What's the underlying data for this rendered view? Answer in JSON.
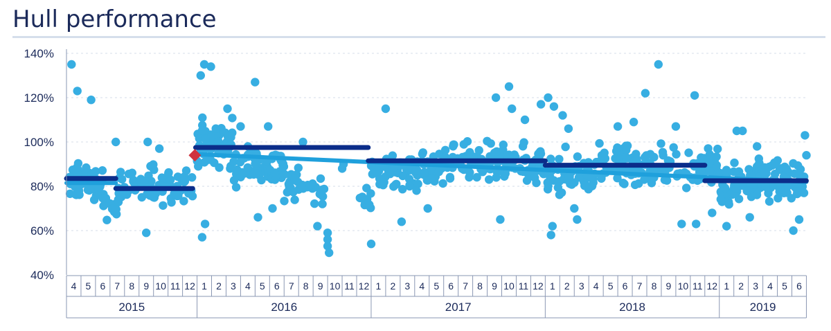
{
  "title": "Hull performance",
  "colors": {
    "points": "#37aee2",
    "trend": "#1fa0dc",
    "period_avg": "#0b2d8a",
    "marker": "#d0333e",
    "title": "#1b2a5a",
    "grid": "#d6dde8"
  },
  "chart_data": {
    "type": "scatter",
    "title": "Hull performance",
    "xlabel": "",
    "ylabel": "",
    "ylim": [
      40,
      140
    ],
    "yticks": [
      "40%",
      "60%",
      "80%",
      "100%",
      "120%",
      "140%"
    ],
    "grid": "horizontal dashed",
    "x_months": [
      "4",
      "5",
      "6",
      "7",
      "8",
      "9",
      "10",
      "11",
      "12",
      "1",
      "2",
      "3",
      "4",
      "5",
      "6",
      "7",
      "8",
      "9",
      "10",
      "11",
      "12",
      "1",
      "2",
      "3",
      "4",
      "5",
      "6",
      "7",
      "8",
      "9",
      "10",
      "11",
      "12",
      "1",
      "2",
      "3",
      "4",
      "5",
      "6",
      "7",
      "8",
      "9",
      "10",
      "11",
      "12",
      "1",
      "2",
      "3",
      "4",
      "5",
      "6"
    ],
    "x_years": [
      {
        "label": "2015",
        "start": 0,
        "end": 9
      },
      {
        "label": "2016",
        "start": 9,
        "end": 21
      },
      {
        "label": "2017",
        "start": 21,
        "end": 33
      },
      {
        "label": "2018",
        "start": 33,
        "end": 45
      },
      {
        "label": "2019",
        "start": 45,
        "end": 51
      }
    ],
    "clusters": [
      {
        "start": 0.0,
        "end": 2.5,
        "center": 82,
        "spread": 7,
        "count": 55
      },
      {
        "start": 2.5,
        "end": 3.6,
        "center": 72,
        "spread": 6,
        "count": 20
      },
      {
        "start": 3.6,
        "end": 8.7,
        "center": 80,
        "spread": 8,
        "count": 80
      },
      {
        "start": 9.0,
        "end": 11.5,
        "center": 100,
        "spread": 10,
        "count": 60
      },
      {
        "start": 11.5,
        "end": 15.0,
        "center": 89,
        "spread": 8,
        "count": 70
      },
      {
        "start": 15.0,
        "end": 17.8,
        "center": 80,
        "spread": 6,
        "count": 40
      },
      {
        "start": 20.2,
        "end": 21.0,
        "center": 76,
        "spread": 7,
        "count": 10
      },
      {
        "start": 21.0,
        "end": 26.0,
        "center": 87,
        "spread": 8,
        "count": 90
      },
      {
        "start": 26.0,
        "end": 33.0,
        "center": 90,
        "spread": 8,
        "count": 130
      },
      {
        "start": 33.0,
        "end": 36.5,
        "center": 86,
        "spread": 9,
        "count": 60
      },
      {
        "start": 36.5,
        "end": 45.0,
        "center": 89,
        "spread": 8,
        "count": 140
      },
      {
        "start": 45.0,
        "end": 46.0,
        "center": 80,
        "spread": 8,
        "count": 25
      },
      {
        "start": 46.0,
        "end": 51.0,
        "center": 83,
        "spread": 8,
        "count": 110
      }
    ],
    "outliers": [
      [
        0.35,
        135
      ],
      [
        0.75,
        123
      ],
      [
        1.7,
        119
      ],
      [
        3.4,
        100
      ],
      [
        5.6,
        100
      ],
      [
        5.5,
        59
      ],
      [
        6.4,
        97
      ],
      [
        9.25,
        130
      ],
      [
        9.5,
        135
      ],
      [
        9.95,
        134
      ],
      [
        9.35,
        57
      ],
      [
        9.55,
        63
      ],
      [
        11.1,
        115
      ],
      [
        12.0,
        107
      ],
      [
        13.0,
        127
      ],
      [
        13.9,
        107
      ],
      [
        13.2,
        66
      ],
      [
        14.2,
        70
      ],
      [
        16.3,
        100
      ],
      [
        17.3,
        62
      ],
      [
        18.0,
        59
      ],
      [
        18.0,
        56
      ],
      [
        18.0,
        53
      ],
      [
        18.1,
        50
      ],
      [
        19.0,
        88
      ],
      [
        19.1,
        90
      ],
      [
        21.0,
        54
      ],
      [
        22.0,
        115
      ],
      [
        23.1,
        64
      ],
      [
        24.9,
        70
      ],
      [
        29.6,
        120
      ],
      [
        29.9,
        65
      ],
      [
        30.5,
        125
      ],
      [
        30.7,
        115
      ],
      [
        31.6,
        110
      ],
      [
        32.7,
        117
      ],
      [
        33.2,
        120
      ],
      [
        33.6,
        116
      ],
      [
        34.2,
        112
      ],
      [
        34.6,
        106
      ],
      [
        33.4,
        58
      ],
      [
        33.5,
        62
      ],
      [
        35.0,
        70
      ],
      [
        35.2,
        65
      ],
      [
        38.0,
        107
      ],
      [
        39.1,
        109
      ],
      [
        39.9,
        122
      ],
      [
        40.8,
        135
      ],
      [
        42.0,
        107
      ],
      [
        42.4,
        63
      ],
      [
        43.4,
        63
      ],
      [
        43.3,
        121
      ],
      [
        44.5,
        68
      ],
      [
        45.5,
        62
      ],
      [
        46.2,
        105
      ],
      [
        46.6,
        105
      ],
      [
        47.1,
        66
      ],
      [
        47.6,
        98
      ],
      [
        48.9,
        90
      ],
      [
        50.1,
        60
      ],
      [
        50.5,
        65
      ],
      [
        50.9,
        103
      ],
      [
        51.0,
        94
      ]
    ],
    "period_averages": [
      {
        "x_start": 0.0,
        "x_end": 3.4,
        "y": 83.5
      },
      {
        "x_start": 3.4,
        "x_end": 8.7,
        "y": 79
      },
      {
        "x_start": 8.9,
        "x_end": 20.8,
        "y": 97.5
      },
      {
        "x_start": 20.8,
        "x_end": 33.0,
        "y": 91.5
      },
      {
        "x_start": 33.0,
        "x_end": 44.0,
        "y": 89.5
      },
      {
        "x_start": 44.0,
        "x_end": 51.0,
        "y": 82.5
      }
    ],
    "trend_segments": [
      {
        "x_start": 0.0,
        "x_end": 3.4,
        "y_start": 81.5,
        "y_end": 81.5
      },
      {
        "x_start": 8.9,
        "x_end": 51.0,
        "y_start": 94.5,
        "y_end": 82.0
      }
    ],
    "markers": [
      {
        "x": 8.85,
        "y": 94,
        "shape": "diamond"
      }
    ]
  }
}
